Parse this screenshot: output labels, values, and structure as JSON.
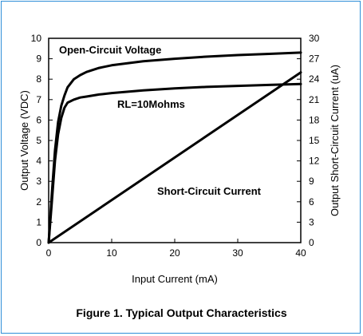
{
  "figure_caption": "Figure 1.  Typical Output Characteristics",
  "chart_data": {
    "type": "line",
    "xlabel": "Input Current (mA)",
    "ylabel_left": "Output Voltage (VDC)",
    "ylabel_right": "Output Short-Circuit Current (uA)",
    "xlim": [
      0,
      40
    ],
    "ylim_left": [
      0,
      10
    ],
    "ylim_right": [
      0,
      30
    ],
    "x_ticks": [
      0,
      10,
      20,
      30,
      40
    ],
    "y_left_ticks": [
      0,
      1,
      2,
      3,
      4,
      5,
      6,
      7,
      8,
      9,
      10
    ],
    "y_right_ticks": [
      0,
      3,
      6,
      9,
      12,
      15,
      18,
      21,
      24,
      27,
      30
    ],
    "grid": false,
    "annotations": [
      "Open-Circuit Voltage",
      "RL=10Mohms",
      "Short-Circuit Current"
    ],
    "series": [
      {
        "axis": "left",
        "x": [
          0,
          0.5,
          1,
          1.5,
          2,
          2.5,
          3,
          4,
          5,
          6,
          8,
          10,
          15,
          20,
          25,
          30,
          35,
          40
        ],
        "values": [
          0,
          2.4,
          4.5,
          5.9,
          6.7,
          7.2,
          7.6,
          8.0,
          8.2,
          8.35,
          8.55,
          8.68,
          8.88,
          9.0,
          9.1,
          9.18,
          9.24,
          9.3
        ]
      },
      {
        "axis": "left",
        "x": [
          0,
          0.5,
          1,
          1.5,
          2,
          2.5,
          3,
          4,
          5,
          6,
          8,
          10,
          15,
          20,
          25,
          30,
          35,
          40
        ],
        "values": [
          0,
          2.0,
          4.0,
          5.3,
          6.1,
          6.6,
          6.85,
          7.0,
          7.1,
          7.15,
          7.25,
          7.32,
          7.45,
          7.55,
          7.62,
          7.67,
          7.72,
          7.76
        ]
      },
      {
        "axis": "right",
        "x": [
          0,
          40
        ],
        "values": [
          0,
          25
        ]
      }
    ]
  }
}
